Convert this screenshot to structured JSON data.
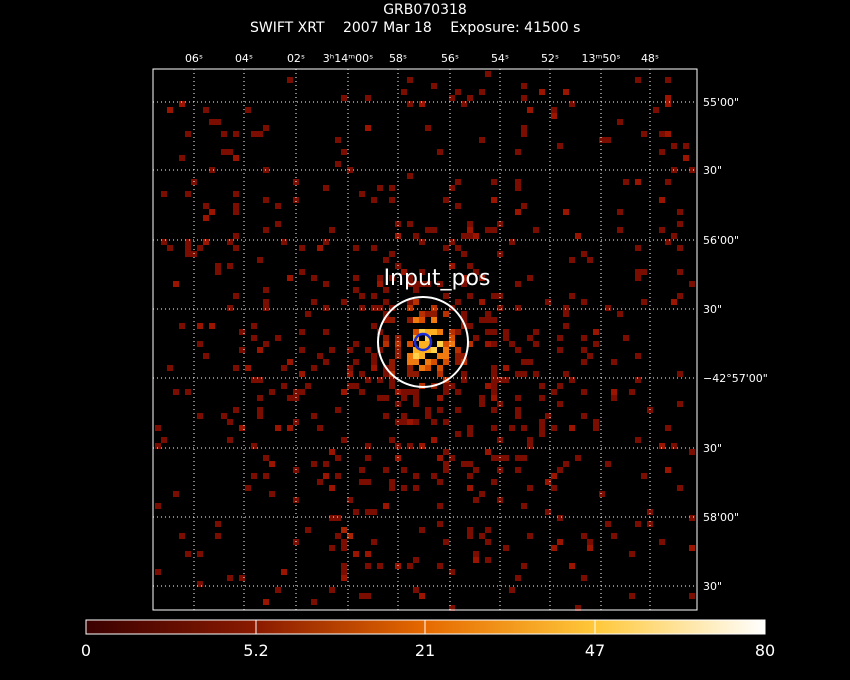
{
  "header": {
    "object": "GRB070318",
    "instrument": "SWIFT XRT",
    "date": "2007 Mar 18",
    "exposure": "Exposure: 41500 s"
  },
  "axes": {
    "ra_ticks": [
      "06ˢ",
      "04ˢ",
      "02ˢ",
      "3ʰ14ᵐ00ˢ",
      "58ˢ",
      "56ˢ",
      "54ˢ",
      "52ˢ",
      "13ᵐ50ˢ",
      "48ˢ"
    ],
    "dec_ticks": [
      "55'00\"",
      "30\"",
      "56'00\"",
      "30\"",
      "−42°57'00\"",
      "30\"",
      "58'00\"",
      "30\""
    ]
  },
  "annotation": {
    "label": "Input_pos"
  },
  "colorbar": {
    "ticks": [
      "0",
      "5.2",
      "21",
      "47",
      "80"
    ]
  },
  "colors": {
    "background": "#000000",
    "grid": "#ffffff",
    "marker": "#1c2fd6"
  }
}
